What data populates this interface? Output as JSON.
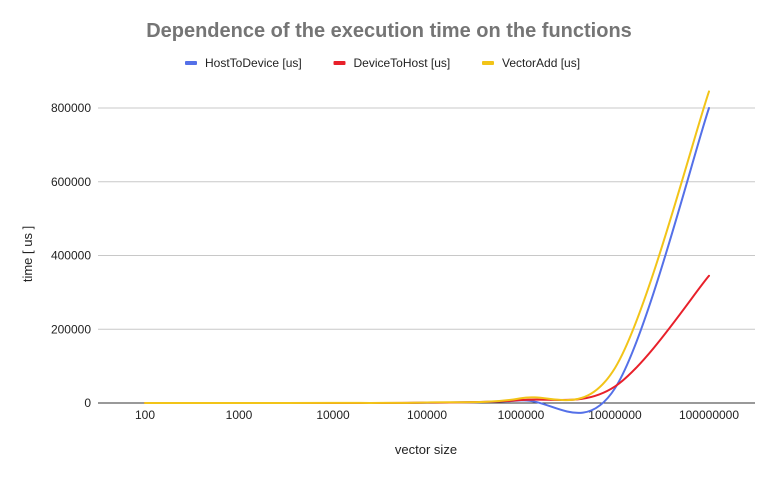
{
  "chart_data": {
    "type": "line",
    "title": "Dependence of the execution time on the functions",
    "xlabel": "vector size",
    "ylabel": "time [ us ]",
    "x_scale": "log",
    "categories": [
      "100",
      "1000",
      "10000",
      "100000",
      "1000000",
      "10000000",
      "100000000"
    ],
    "x": [
      100,
      1000,
      10000,
      100000,
      1000000,
      10000000,
      100000000
    ],
    "ylim": [
      0,
      800000
    ],
    "yticks": [
      "0",
      "200000",
      "400000",
      "600000",
      "800000"
    ],
    "grid": true,
    "legend_position": "top",
    "series": [
      {
        "name": "HostToDevice [us]",
        "color": "#5470e8",
        "values": [
          10,
          20,
          100,
          800,
          7000,
          40000,
          800000
        ]
      },
      {
        "name": "DeviceToHost [us]",
        "color": "#e8202a",
        "values": [
          10,
          20,
          100,
          900,
          8000,
          45000,
          345000
        ]
      },
      {
        "name": "VectorAdd [us]",
        "color": "#f2c418",
        "values": [
          15,
          30,
          200,
          1500,
          13000,
          95000,
          845000
        ]
      }
    ]
  }
}
